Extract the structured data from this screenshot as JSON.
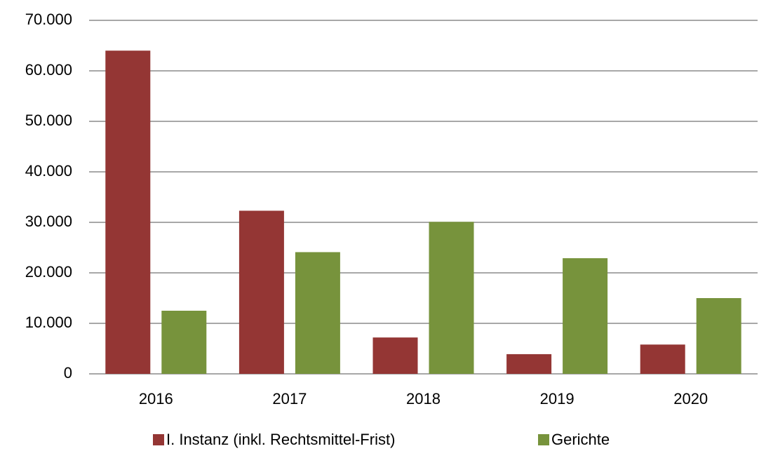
{
  "chart_data": {
    "type": "bar",
    "categories": [
      "2016",
      "2017",
      "2018",
      "2019",
      "2020"
    ],
    "series": [
      {
        "name": "I. Instanz (inkl. Rechtsmittel-Frist)",
        "color": "#943634",
        "values": [
          64000,
          32300,
          7200,
          3900,
          5800
        ]
      },
      {
        "name": "Gerichte",
        "color": "#77933c",
        "values": [
          12500,
          24100,
          30100,
          22900,
          15000
        ]
      }
    ],
    "ylim": [
      0,
      70000
    ],
    "yticks": [
      0,
      {
        "value": 10000,
        "label": "10.000"
      },
      {
        "value": 20000,
        "label": "20.000"
      },
      {
        "value": 30000,
        "label": "30.000"
      },
      {
        "value": 40000,
        "label": "40.000"
      },
      {
        "value": 50000,
        "label": "50.000"
      },
      {
        "value": 60000,
        "label": "60.000"
      },
      {
        "value": 70000,
        "label": "70.000"
      }
    ],
    "grid": true,
    "legend": "bottom"
  }
}
